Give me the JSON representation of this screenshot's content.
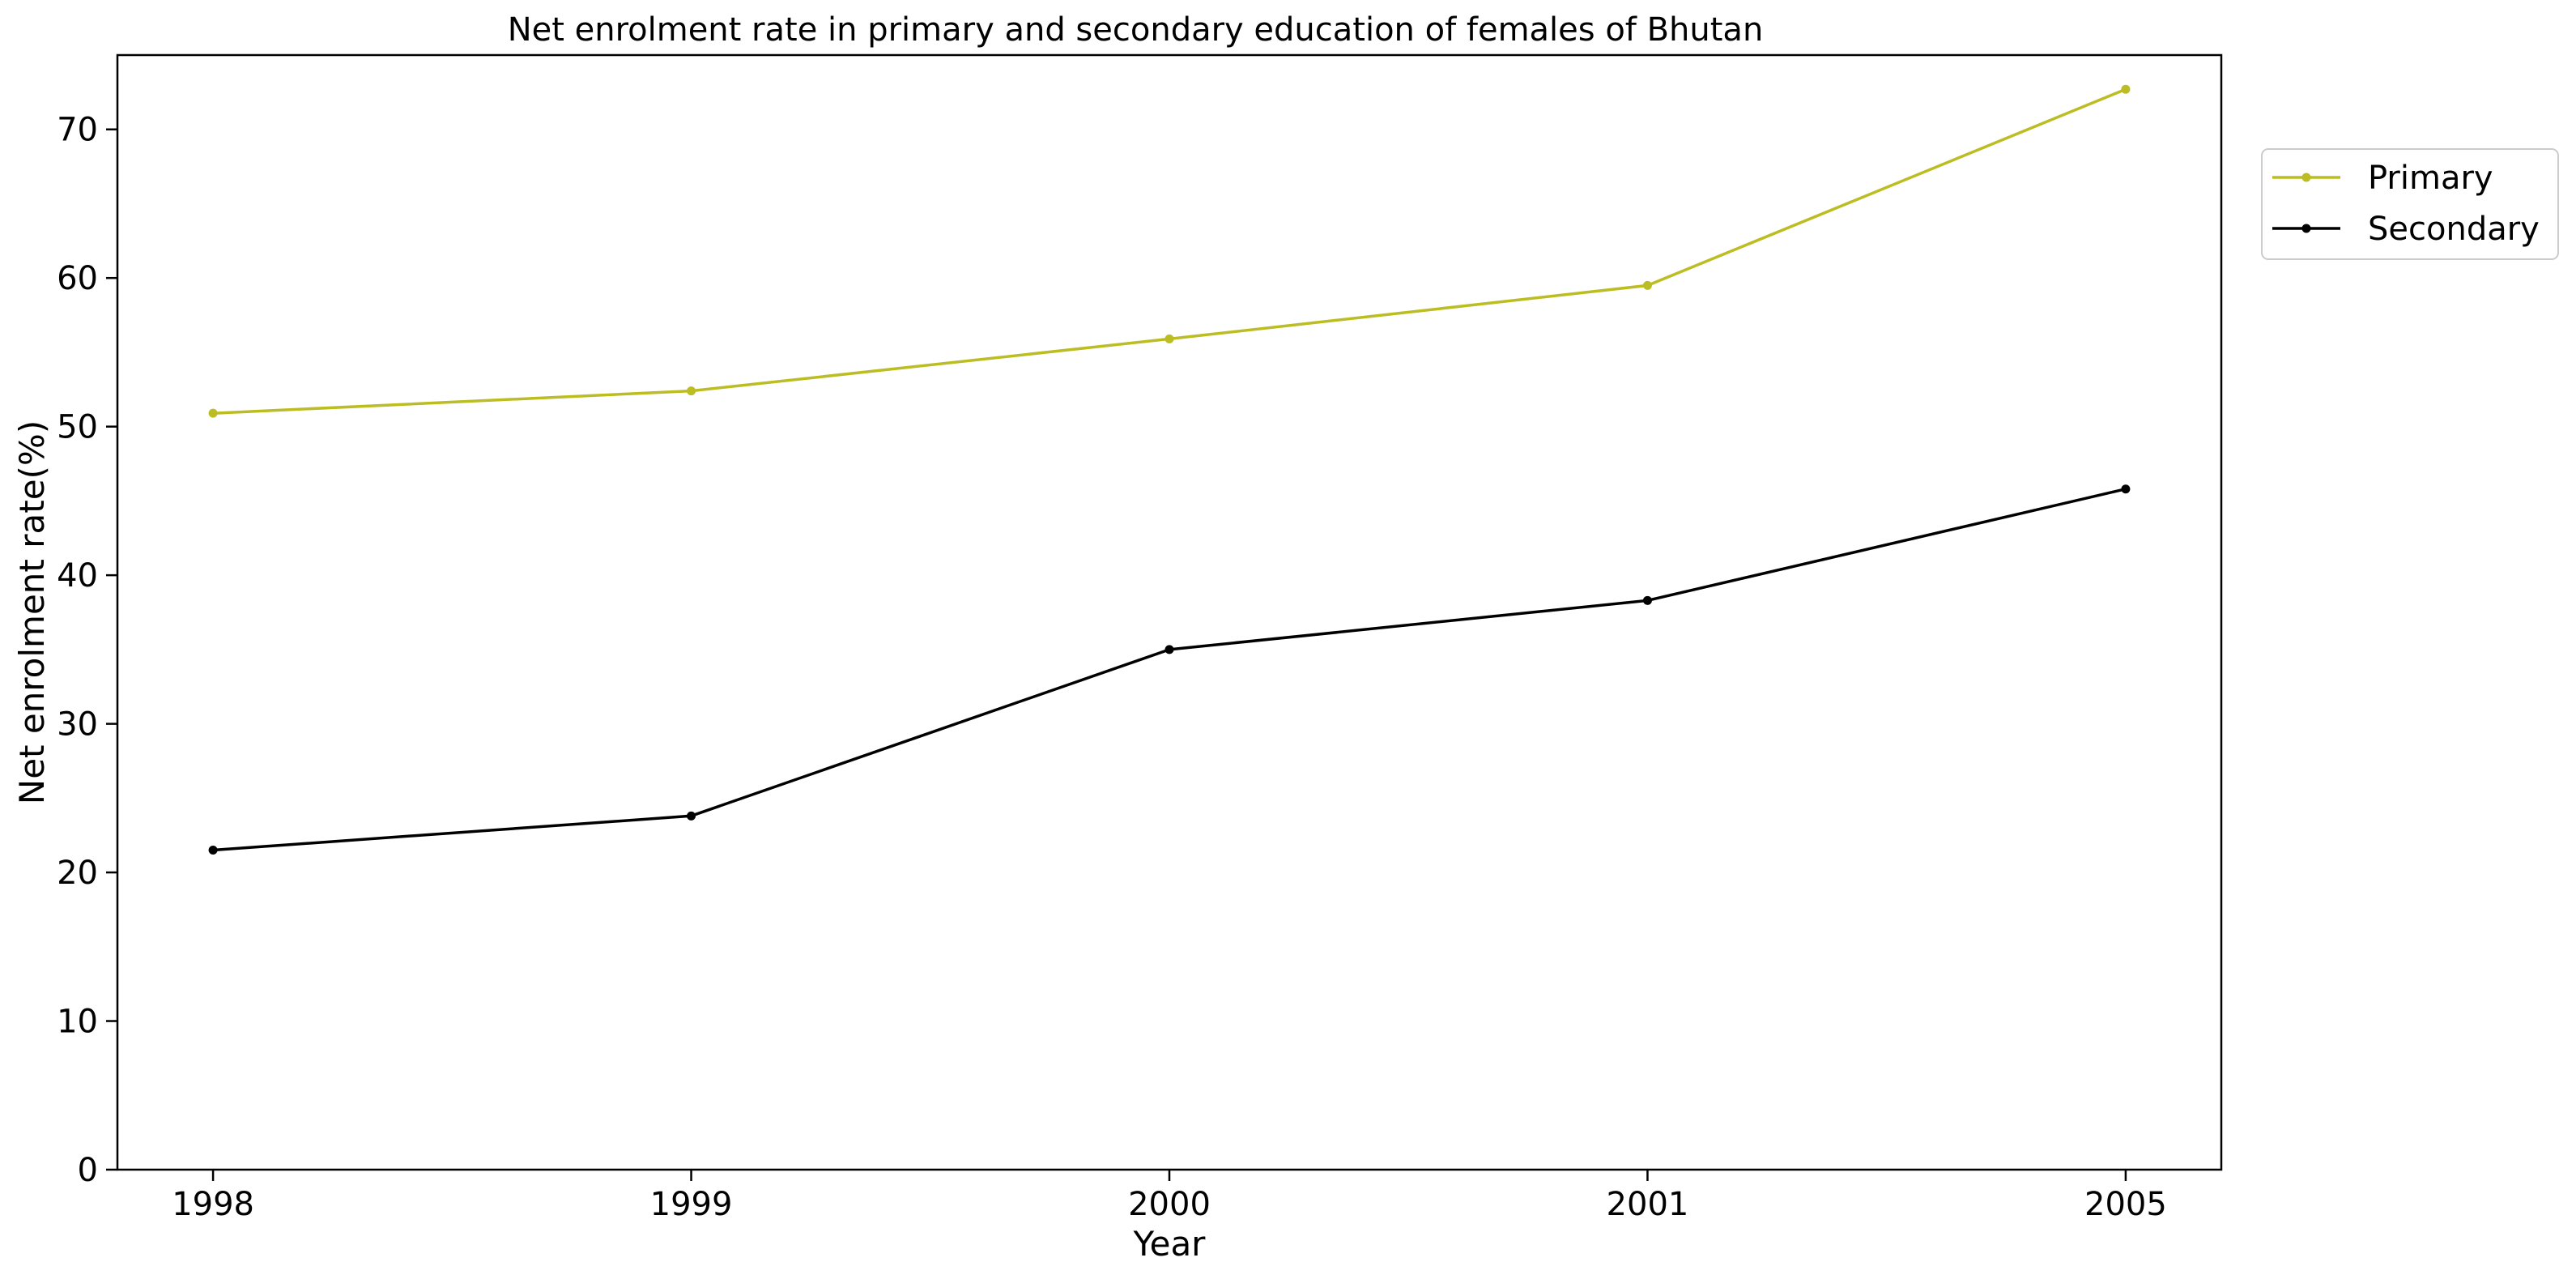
{
  "chart_data": {
    "type": "line",
    "title": "Net enrolment rate in primary and secondary education of females of Bhutan",
    "xlabel": "Year",
    "ylabel": "Net enrolment rate(%)",
    "x": [
      "1998",
      "1999",
      "2000",
      "2001",
      "2005"
    ],
    "yticks": [
      "0",
      "10",
      "20",
      "30",
      "40",
      "50",
      "60",
      "70"
    ],
    "ylim": [
      0,
      75
    ],
    "grid": false,
    "legend_position": "top-right outside",
    "series": [
      {
        "name": "Primary",
        "color": "#bcbd22",
        "values": [
          50.9,
          52.4,
          55.9,
          59.5,
          72.7
        ]
      },
      {
        "name": "Secondary",
        "color": "#000000",
        "values": [
          21.5,
          23.8,
          35.0,
          38.3,
          45.8
        ]
      }
    ]
  }
}
